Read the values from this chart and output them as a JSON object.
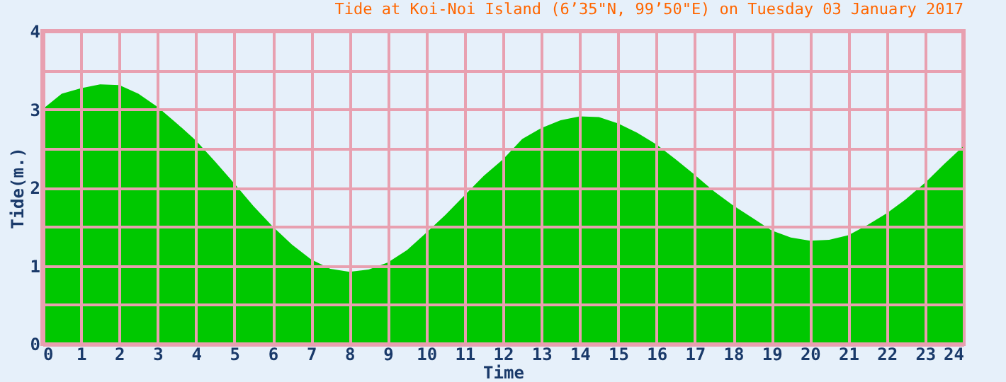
{
  "chart_data": {
    "type": "area",
    "title": "Tide at Koi-Noi Island (6’35\"N, 99’50\"E) on Tuesday 03 January 2017",
    "xlabel": "Time",
    "ylabel": "Tide(m.)",
    "x": [
      0,
      0.5,
      1,
      1.5,
      2,
      2.5,
      3,
      3.5,
      4,
      4.5,
      5,
      5.5,
      6,
      6.5,
      7,
      7.5,
      8,
      8.5,
      9,
      9.5,
      10,
      10.5,
      11,
      11.5,
      12,
      12.5,
      13,
      13.5,
      14,
      14.5,
      15,
      15.5,
      16,
      16.5,
      17,
      17.5,
      18,
      18.5,
      19,
      19.5,
      20,
      20.5,
      21,
      21.5,
      22,
      22.5,
      23,
      23.5,
      24
    ],
    "series": [
      {
        "color": "#00c800",
        "values": [
          3.0,
          3.2,
          3.27,
          3.32,
          3.31,
          3.2,
          3.03,
          2.82,
          2.6,
          2.33,
          2.05,
          1.76,
          1.5,
          1.27,
          1.08,
          0.96,
          0.92,
          0.95,
          1.04,
          1.2,
          1.42,
          1.65,
          1.9,
          2.15,
          2.36,
          2.62,
          2.76,
          2.86,
          2.91,
          2.9,
          2.82,
          2.7,
          2.55,
          2.36,
          2.16,
          1.95,
          1.77,
          1.61,
          1.45,
          1.36,
          1.32,
          1.33,
          1.39,
          1.52,
          1.67,
          1.85,
          2.06,
          2.3,
          2.53
        ]
      }
    ],
    "xlim": [
      0,
      24
    ],
    "xticks": [
      0,
      1,
      2,
      3,
      4,
      5,
      6,
      7,
      8,
      9,
      10,
      11,
      12,
      13,
      14,
      15,
      16,
      17,
      18,
      19,
      20,
      21,
      22,
      23,
      24
    ],
    "ylim": [
      0,
      4
    ],
    "yticks": [
      0,
      {
        "value": 0.5,
        "label": null
      },
      1,
      {
        "value": 1.5,
        "label": null
      },
      2,
      {
        "value": 2.5,
        "label": null
      },
      3,
      {
        "value": 3.5,
        "label": null
      },
      4
    ],
    "grid": true
  }
}
